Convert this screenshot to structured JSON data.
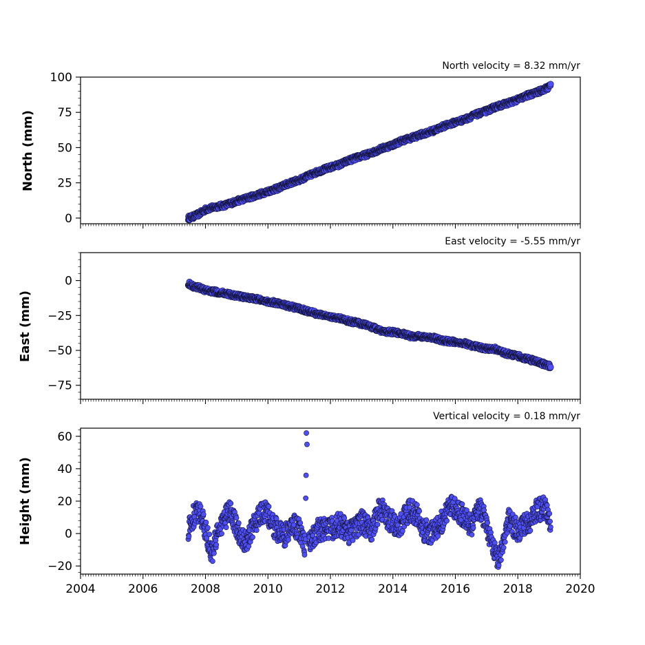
{
  "chart_data": [
    {
      "type": "scatter",
      "title": "North velocity = 8.32 mm/yr",
      "xlabel": "",
      "ylabel": "North (mm)",
      "xlim": [
        2004,
        2020
      ],
      "ylim": [
        -4,
        100
      ],
      "yticks": [
        "0",
        "25",
        "50",
        "75",
        "100"
      ],
      "grid": false,
      "marker_color": "#4f4ff7",
      "series": [
        {
          "x": [
            2007.45,
            2007.6,
            2007.8,
            2008.0,
            2008.3,
            2008.6,
            2009.0,
            2009.3,
            2009.6,
            2010.0,
            2010.3,
            2010.6,
            2011.0,
            2011.3,
            2011.6,
            2012.0,
            2012.3,
            2012.6,
            2013.0,
            2013.3,
            2013.6,
            2014.0,
            2014.3,
            2014.6,
            2015.0,
            2015.3,
            2015.6,
            2016.0,
            2016.3,
            2016.6,
            2017.0,
            2017.3,
            2017.6,
            2018.0,
            2018.3,
            2018.6,
            2019.0,
            2019.05
          ],
          "y": [
            0,
            1,
            3,
            6,
            8,
            9,
            12,
            14,
            16,
            19,
            21,
            24,
            27,
            30,
            33,
            36,
            38,
            41,
            44,
            46,
            49,
            52,
            55,
            57,
            60,
            62,
            65,
            68,
            70,
            73,
            76,
            79,
            81,
            84,
            87,
            89,
            93,
            95
          ]
        }
      ]
    },
    {
      "type": "scatter",
      "title": "East velocity = -5.55 mm/yr",
      "xlabel": "",
      "ylabel": "East (mm)",
      "xlim": [
        2004,
        2020
      ],
      "ylim": [
        -85,
        20
      ],
      "yticks": [
        "0",
        "−25",
        "−50",
        "−75"
      ],
      "grid": false,
      "marker_color": "#4f4ff7",
      "series": [
        {
          "x": [
            2007.45,
            2007.6,
            2007.8,
            2008.0,
            2008.3,
            2008.6,
            2009.0,
            2009.3,
            2009.6,
            2010.0,
            2010.3,
            2010.6,
            2011.0,
            2011.3,
            2011.6,
            2012.0,
            2012.3,
            2012.6,
            2013.0,
            2013.3,
            2013.6,
            2014.0,
            2014.3,
            2014.6,
            2015.0,
            2015.3,
            2015.6,
            2016.0,
            2016.3,
            2016.6,
            2017.0,
            2017.3,
            2017.6,
            2018.0,
            2018.3,
            2018.6,
            2019.0,
            2019.05
          ],
          "y": [
            -2,
            -4,
            -5,
            -7,
            -8,
            -9,
            -11,
            -12,
            -13,
            -15,
            -16,
            -18,
            -20,
            -22,
            -24,
            -26,
            -27,
            -29,
            -31,
            -33,
            -36,
            -37,
            -38,
            -40,
            -40,
            -41,
            -43,
            -44,
            -45,
            -47,
            -49,
            -49,
            -52,
            -54,
            -56,
            -58,
            -61,
            -62
          ]
        }
      ]
    },
    {
      "type": "scatter",
      "title": "Vertical velocity = 0.18 mm/yr",
      "xlabel": "",
      "ylabel": "Height (mm)",
      "xlim": [
        2004,
        2020
      ],
      "ylim": [
        -25,
        65
      ],
      "yticks": [
        "−20",
        "0",
        "20",
        "40",
        "60"
      ],
      "xticks": [
        "2004",
        "2006",
        "2008",
        "2010",
        "2012",
        "2014",
        "2016",
        "2018",
        "2020"
      ],
      "grid": false,
      "marker_color": "#4f4ff7",
      "series": [
        {
          "x": [
            2007.45,
            2007.6,
            2007.8,
            2008.0,
            2008.2,
            2008.5,
            2008.8,
            2009.0,
            2009.3,
            2009.6,
            2009.9,
            2010.2,
            2010.5,
            2010.8,
            2011.0,
            2011.2,
            2011.23,
            2011.25,
            2011.3,
            2011.6,
            2012.0,
            2012.3,
            2012.6,
            2013.0,
            2013.3,
            2013.6,
            2013.9,
            2014.2,
            2014.5,
            2014.8,
            2015.0,
            2015.3,
            2015.6,
            2015.9,
            2016.2,
            2016.5,
            2016.8,
            2017.0,
            2017.2,
            2017.4,
            2017.7,
            2018.0,
            2018.3,
            2018.6,
            2018.9,
            2019.05
          ],
          "y": [
            2,
            10,
            14,
            2,
            -12,
            6,
            14,
            3,
            -6,
            8,
            14,
            4,
            -2,
            6,
            2,
            -8,
            62,
            55,
            -4,
            2,
            3,
            6,
            0,
            8,
            2,
            16,
            8,
            4,
            14,
            12,
            2,
            0,
            8,
            18,
            12,
            4,
            16,
            6,
            -8,
            -16,
            8,
            2,
            6,
            14,
            16,
            4
          ]
        }
      ]
    }
  ]
}
